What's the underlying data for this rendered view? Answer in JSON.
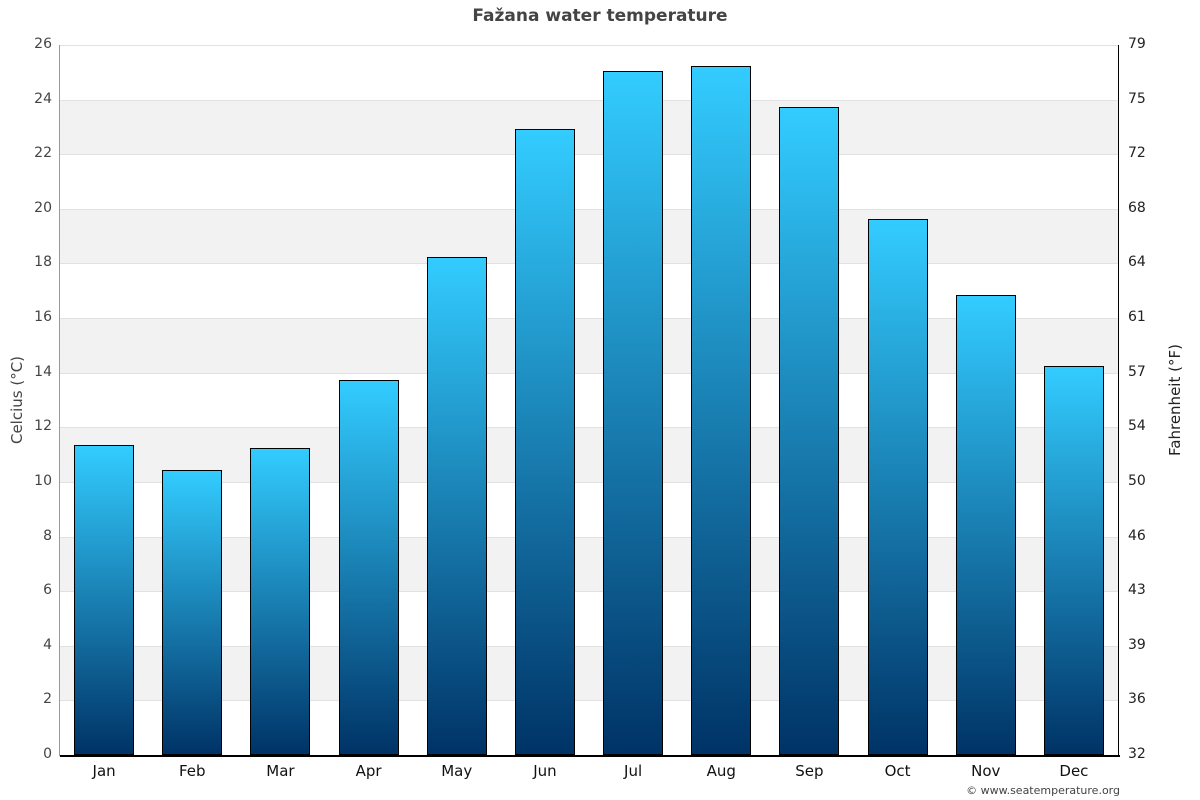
{
  "chart_data": {
    "type": "bar",
    "title": "Fažana water temperature",
    "xlabel": "",
    "ylabel": "Celcius (°C)",
    "ylabel_right": "Fahrenheit (°F)",
    "categories": [
      "Jan",
      "Feb",
      "Mar",
      "Apr",
      "May",
      "Jun",
      "Jul",
      "Aug",
      "Sep",
      "Oct",
      "Nov",
      "Dec"
    ],
    "values": [
      11.3,
      10.4,
      11.2,
      13.7,
      18.2,
      22.9,
      25.0,
      25.2,
      23.7,
      19.6,
      16.8,
      14.2
    ],
    "ylim": [
      0,
      26
    ],
    "yticks_left": [
      "0",
      "2",
      "4",
      "6",
      "8",
      "10",
      "12",
      "14",
      "16",
      "18",
      "20",
      "22",
      "24",
      "26"
    ],
    "yticks_right": [
      "32",
      "36",
      "39",
      "43",
      "46",
      "50",
      "54",
      "57",
      "61",
      "64",
      "68",
      "72",
      "75",
      "79"
    ],
    "grid": true,
    "legend": null,
    "bar_gradient": {
      "top": "#33ccff",
      "bottom": "#003366"
    },
    "band_color": "#f2f2f2",
    "credit": "© www.seatemperature.org"
  }
}
